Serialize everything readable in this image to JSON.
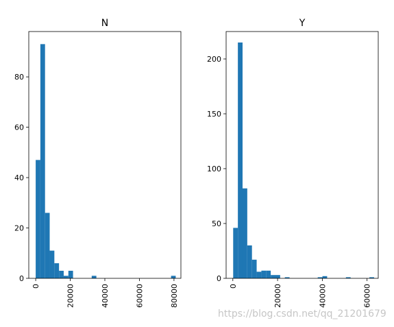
{
  "chart_data": [
    {
      "type": "histogram",
      "title": "N",
      "xlabel": "",
      "ylabel": "",
      "xlim": [
        -4000,
        84000
      ],
      "ylim": [
        0,
        98
      ],
      "xticks": [
        0,
        20000,
        40000,
        60000,
        80000
      ],
      "xtick_labels": [
        "0",
        "20000",
        "40000",
        "60000",
        "80000"
      ],
      "yticks": [
        0,
        20,
        40,
        60,
        80
      ],
      "ytick_labels": [
        "0",
        "20",
        "40",
        "60",
        "80"
      ],
      "bin_start": 0,
      "bin_width": 2700,
      "counts": [
        47,
        93,
        26,
        11,
        6,
        3,
        1,
        3,
        0,
        0,
        0,
        0,
        1,
        0,
        0,
        0,
        0,
        0,
        0,
        0,
        0,
        0,
        0,
        0,
        0,
        0,
        0,
        0,
        0,
        1
      ],
      "grid": false,
      "color": "#1f77b4"
    },
    {
      "type": "histogram",
      "title": "Y",
      "xlabel": "",
      "ylabel": "",
      "xlim": [
        -3000,
        65000
      ],
      "ylim": [
        0,
        225
      ],
      "xticks": [
        0,
        20000,
        40000,
        60000
      ],
      "xtick_labels": [
        "0",
        "20000",
        "40000",
        "60000"
      ],
      "yticks": [
        0,
        50,
        100,
        150,
        200
      ],
      "ytick_labels": [
        "0",
        "50",
        "100",
        "150",
        "200"
      ],
      "bin_start": 150,
      "bin_width": 2100,
      "counts": [
        46,
        215,
        82,
        30,
        17,
        6,
        7,
        7,
        3,
        3,
        0,
        1,
        0,
        0,
        0,
        0,
        0,
        0,
        1,
        2,
        0,
        0,
        0,
        0,
        1,
        0,
        0,
        0,
        0,
        1
      ],
      "grid": false,
      "color": "#1f77b4"
    }
  ],
  "watermark": "https://blog.csdn.net/qq_21201679"
}
